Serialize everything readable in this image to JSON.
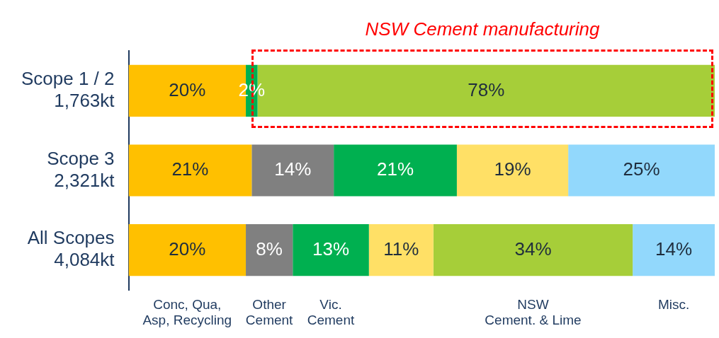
{
  "chart_data": {
    "type": "bar",
    "orientation": "horizontal",
    "stacked": true,
    "categories": [
      "Scope 1 / 2\n1,763kt",
      "Scope 3\n2,321kt",
      "All Scopes\n4,084kt"
    ],
    "series": [
      {
        "name": "Conc, Qua,\nAsp, Recycling",
        "color": "#ffc000",
        "values": [
          20,
          21,
          20
        ],
        "value_labels": [
          "20%",
          "21%",
          "20%"
        ]
      },
      {
        "name": "Other\nCement",
        "color": "#808080",
        "values": [
          null,
          14,
          8
        ],
        "value_labels": [
          null,
          "14%",
          "8%"
        ]
      },
      {
        "name": "Vic.\nCement",
        "color": "#00b050",
        "values": [
          2,
          21,
          13
        ],
        "value_labels": [
          "2%",
          "21%",
          "13%"
        ]
      },
      {
        "color": "#ffe066",
        "values": [
          null,
          19,
          11
        ],
        "value_labels": [
          null,
          "19%",
          "11%"
        ]
      },
      {
        "name": "NSW\nCement. & Lime",
        "color": "#a6ce39",
        "values": [
          78,
          null,
          34
        ],
        "value_labels": [
          "78%",
          null,
          "34%"
        ]
      },
      {
        "name": "Misc.",
        "color": "#92d8fc",
        "values": [
          null,
          25,
          14
        ],
        "value_labels": [
          null,
          "25%",
          "14%"
        ]
      }
    ],
    "tick_labels": "y",
    "legend": false,
    "annotations": [
      "NSW Cement manufacturing"
    ]
  }
}
